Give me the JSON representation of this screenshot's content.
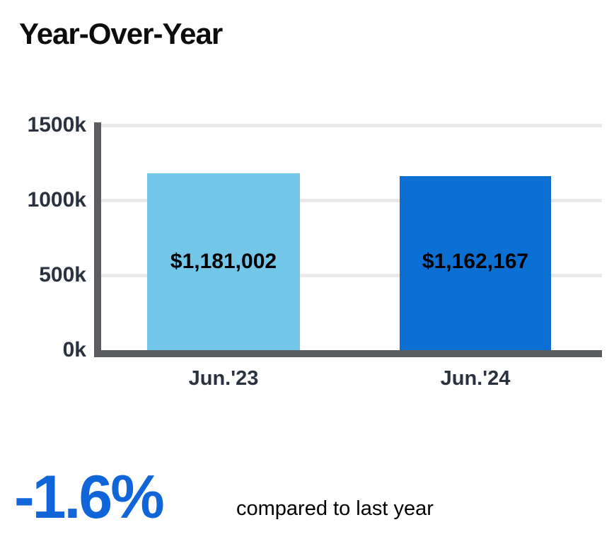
{
  "title": "Year-Over-Year",
  "chart_data": {
    "type": "bar",
    "title": "Year-Over-Year",
    "categories": [
      "Jun.'23",
      "Jun.'24"
    ],
    "values": [
      1181002,
      1162167
    ],
    "value_labels": [
      "$1,181,002",
      "$1,162,167"
    ],
    "bar_colors": [
      "#72c6e8",
      "#0b6fd4"
    ],
    "xlabel": "",
    "ylabel": "",
    "ylim": [
      0,
      1500000
    ],
    "ytick_labels": [
      "1500k",
      "1000k",
      "500k",
      "0k"
    ],
    "grid": true,
    "legend": false
  },
  "summary": {
    "delta_pct": "-1.6%",
    "caption": "compared to last year"
  },
  "colors": {
    "bar_light_blue": "#72c6e8",
    "bar_dark_blue": "#0b6fd4",
    "accent_blue": "#1065d8",
    "axis_gray": "#5c5d60",
    "gridline_gray": "#e9e9ea",
    "tick_text": "#2a3240",
    "title_text": "#0c0c0c"
  }
}
